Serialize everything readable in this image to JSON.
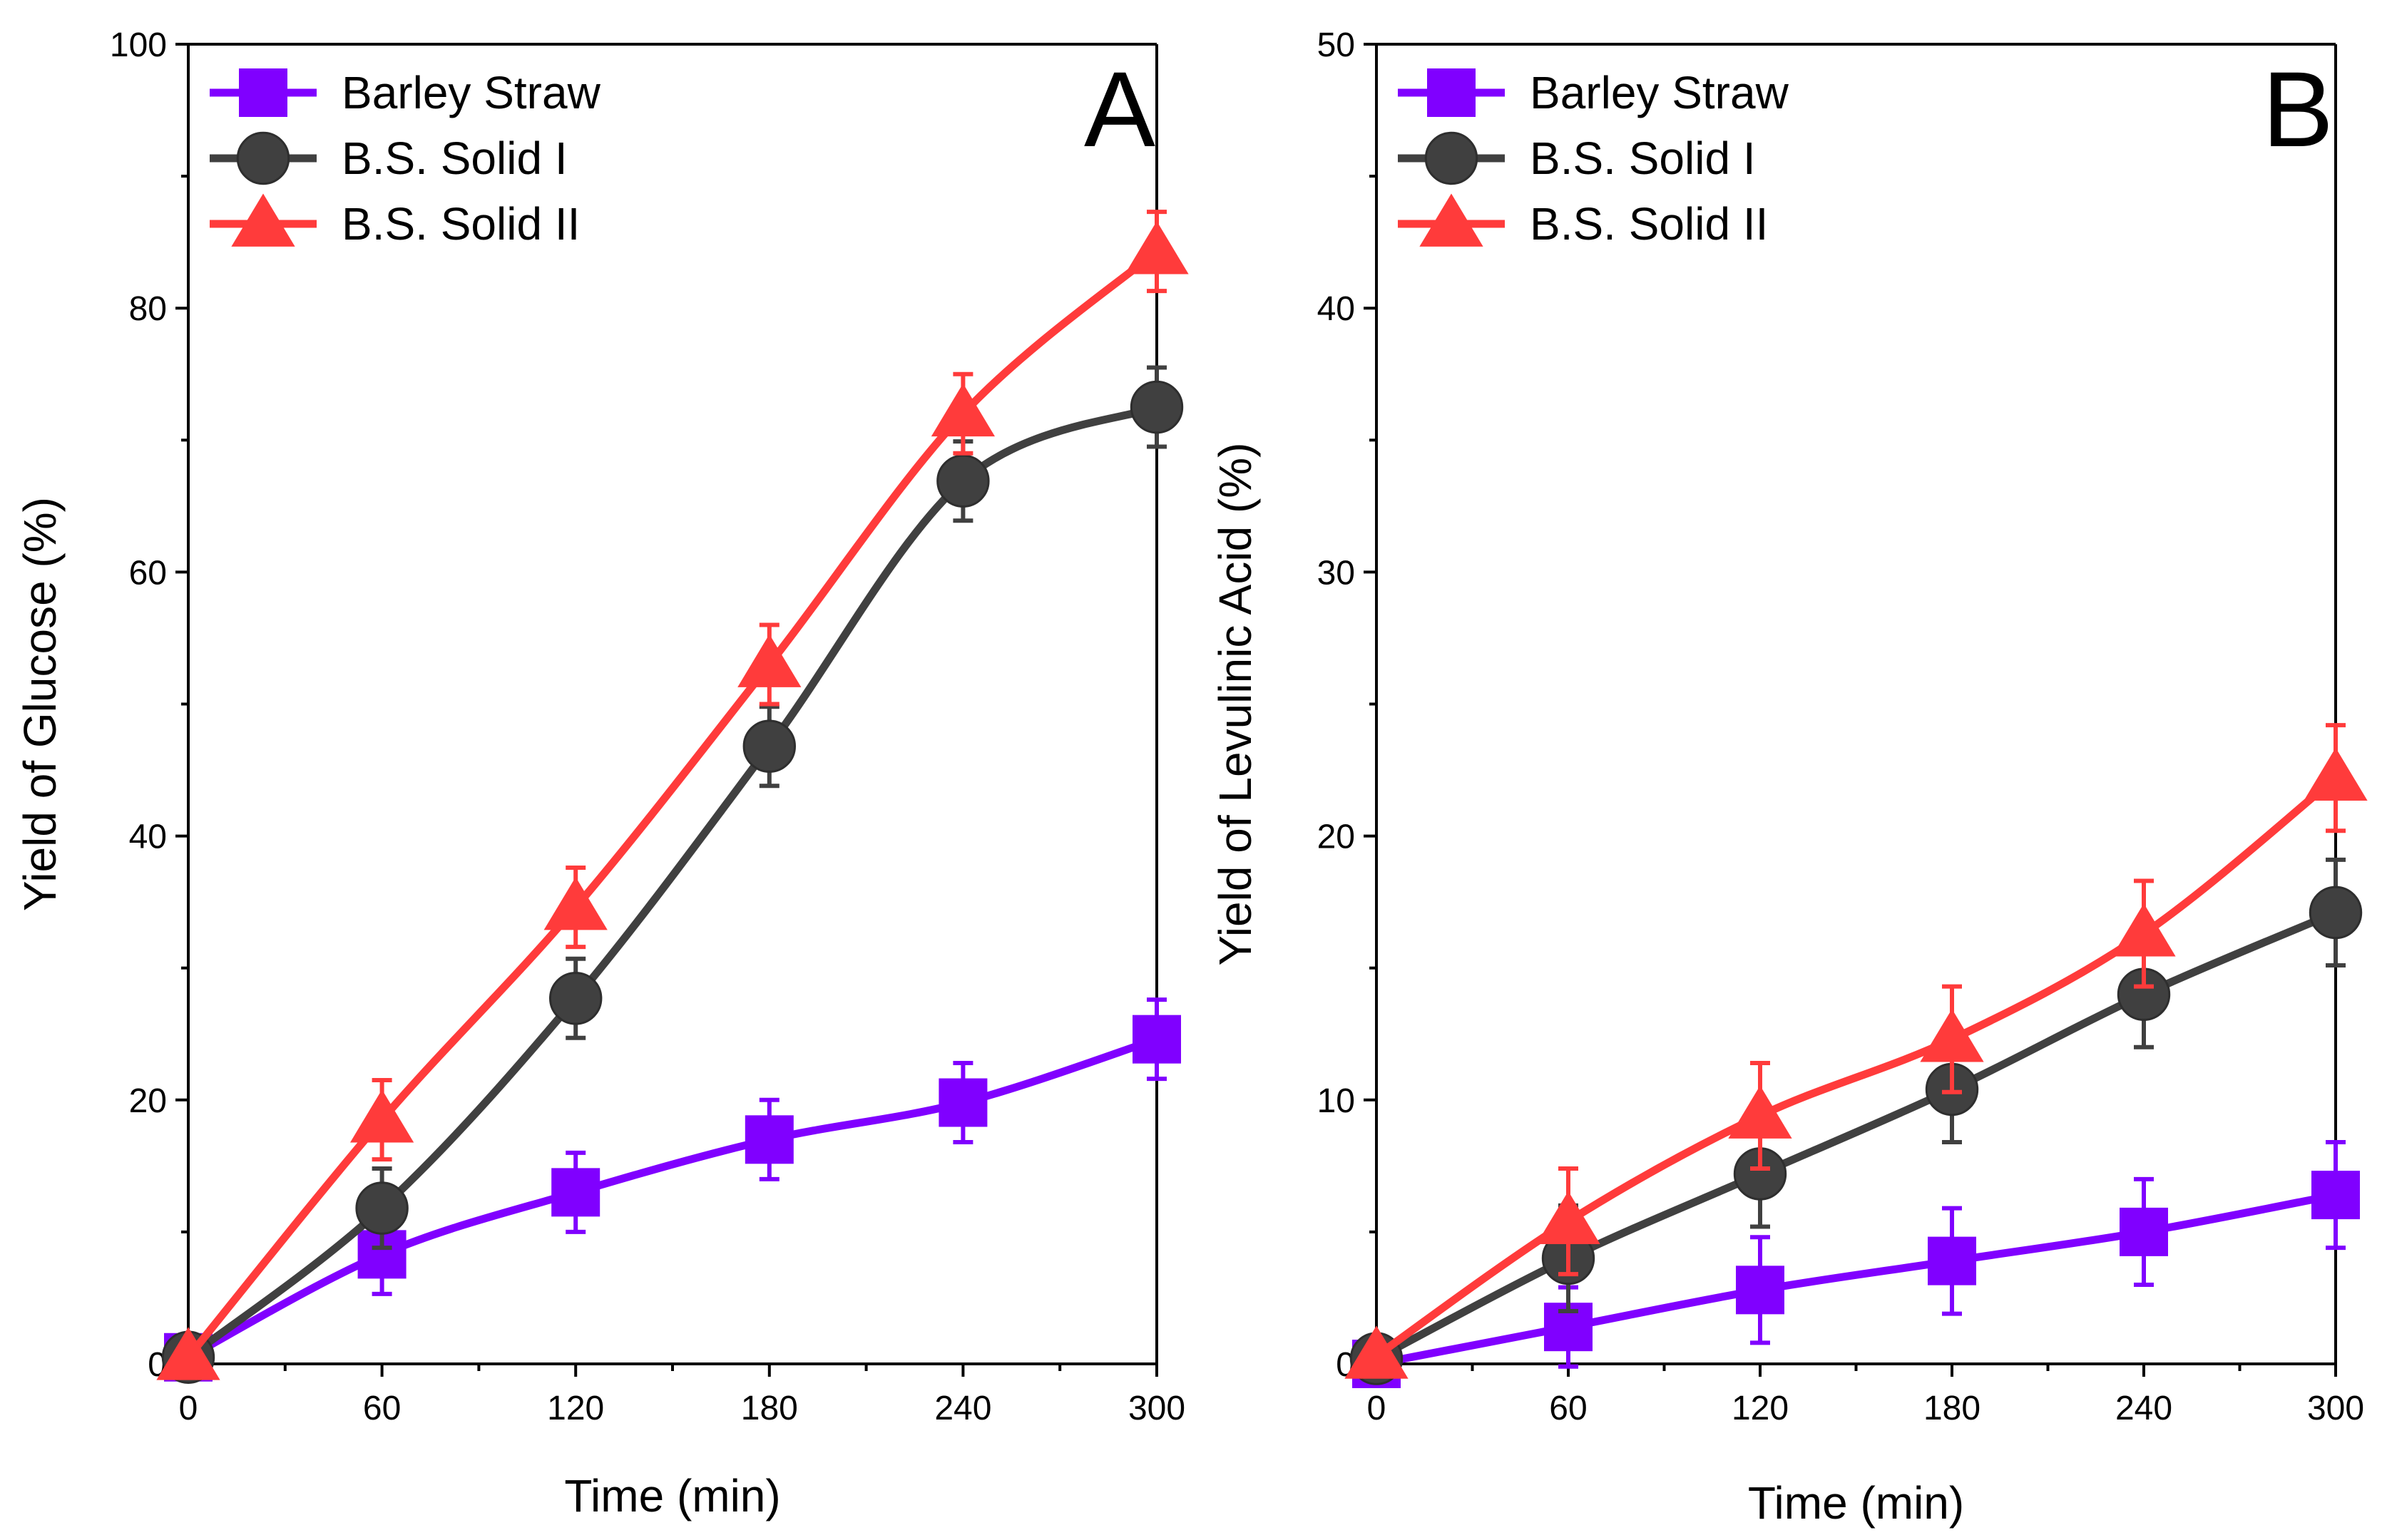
{
  "chart_data": [
    {
      "type": "line",
      "panel_label": "A",
      "xlabel": "Time (min)",
      "ylabel": "Yield of Glucose (%)",
      "xlim": [
        0,
        300
      ],
      "ylim": [
        0,
        100
      ],
      "xticks": [
        "0",
        "60",
        "120",
        "180",
        "240",
        "300"
      ],
      "yticks": [
        "0",
        "20",
        "40",
        "60",
        "80",
        "100"
      ],
      "legend_position": "top-left",
      "grid": false,
      "x": [
        0,
        60,
        120,
        180,
        240,
        300
      ],
      "series": [
        {
          "name": "Barley Straw",
          "color": "#8000ff",
          "marker": "square",
          "values": [
            0.5,
            8.3,
            13,
            17,
            19.8,
            24.6
          ],
          "errors": [
            0,
            3,
            3,
            3,
            3,
            3
          ]
        },
        {
          "name": "B.S. Solid I",
          "color": "#404040",
          "marker": "circle",
          "values": [
            0.5,
            11.8,
            27.7,
            46.8,
            66.9,
            72.5
          ],
          "errors": [
            0,
            3,
            3,
            3,
            3,
            3
          ]
        },
        {
          "name": "B.S. Solid II",
          "color": "#ff3b3b",
          "marker": "triangle",
          "values": [
            0.5,
            18.5,
            34.6,
            53,
            72,
            84.3
          ],
          "errors": [
            0,
            3,
            3,
            3,
            3,
            3
          ]
        }
      ]
    },
    {
      "type": "line",
      "panel_label": "B",
      "xlabel": "Time (min)",
      "ylabel": "Yield of Levulinic Acid (%)",
      "xlim": [
        0,
        300
      ],
      "ylim": [
        0,
        50
      ],
      "xticks": [
        "0",
        "60",
        "120",
        "180",
        "240",
        "300"
      ],
      "yticks": [
        "0",
        "10",
        "20",
        "30",
        "40",
        "50"
      ],
      "legend_position": "top-left",
      "grid": false,
      "x": [
        0,
        60,
        120,
        180,
        240,
        300
      ],
      "series": [
        {
          "name": "Barley Straw",
          "color": "#8000ff",
          "marker": "square",
          "values": [
            0,
            1.4,
            2.8,
            3.9,
            5.0,
            6.4
          ],
          "errors": [
            0,
            1.5,
            2,
            2,
            2,
            2
          ]
        },
        {
          "name": "B.S. Solid I",
          "color": "#404040",
          "marker": "circle",
          "values": [
            0.2,
            4.0,
            7.2,
            10.4,
            14.0,
            17.1
          ],
          "errors": [
            0,
            2,
            2,
            2,
            2,
            2
          ]
        },
        {
          "name": "B.S. Solid II",
          "color": "#ff3b3b",
          "marker": "triangle",
          "values": [
            0.3,
            5.4,
            9.4,
            12.3,
            16.3,
            22.2
          ],
          "errors": [
            0,
            2,
            2,
            2,
            2,
            2
          ]
        }
      ]
    }
  ]
}
